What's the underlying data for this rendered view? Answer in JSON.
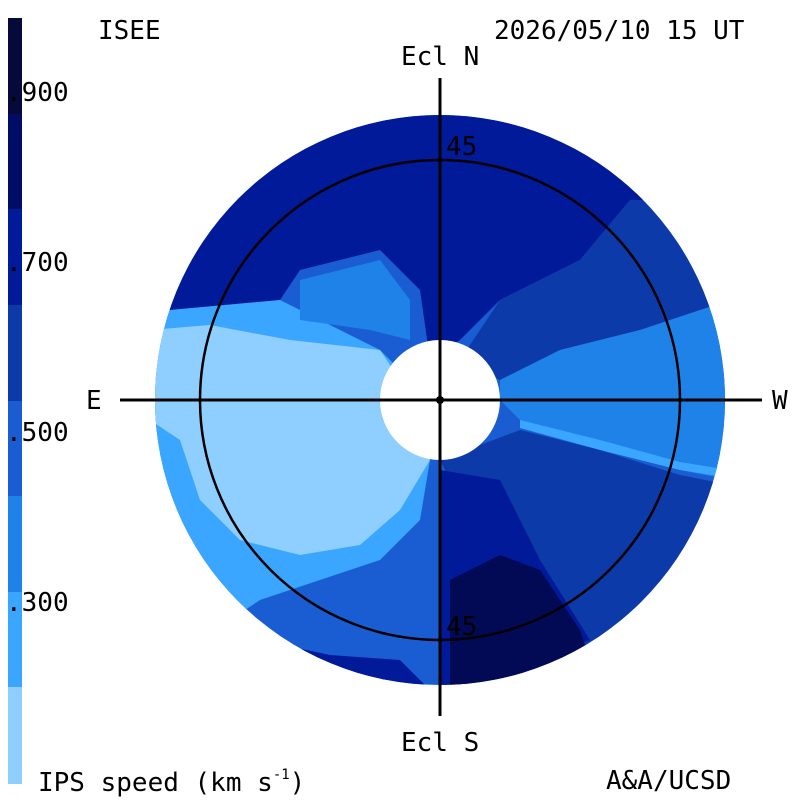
{
  "header": {
    "source": "ISEE",
    "datetime": "2026/05/10 15 UT"
  },
  "footer": {
    "quantity": "IPS speed (km s",
    "exponent": "-1",
    "close": ")",
    "credit": "A&A/UCSD"
  },
  "axes": {
    "north": "Ecl N",
    "south": "Ecl S",
    "east": "E",
    "west": "W",
    "circle_label_top": "45",
    "circle_label_bottom": "45"
  },
  "colorbar": {
    "ticks": [
      ".900",
      ".700",
      ".500",
      ".300"
    ],
    "colors": [
      "#050a3a",
      "#000c66",
      "#001a99",
      "#0c3aa8",
      "#1a5cd1",
      "#1e82e8",
      "#3aa6ff",
      "#8fcfff"
    ]
  },
  "map_colors": {
    "darkest": "#020a55",
    "dark": "#001a99",
    "mid_dark": "#0c3aa8",
    "mid": "#1a5cd1",
    "mid_light": "#1e82e8",
    "light": "#3aa6ff",
    "lightest": "#8fcfff"
  }
}
